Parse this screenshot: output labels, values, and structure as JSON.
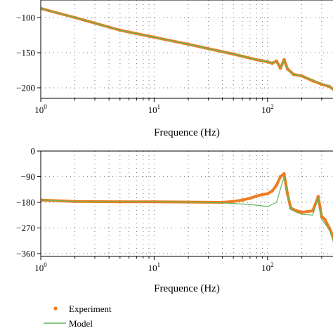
{
  "colors": {
    "experiment": "#ef7d22",
    "model": "#5cb85c",
    "grid": "#7a7a7a"
  },
  "legend": {
    "experiment": "Experiment",
    "model": "Model"
  },
  "chart_data": [
    {
      "type": "line",
      "panel": "magnitude",
      "xlabel": "Frequence (Hz)",
      "xscale": "log",
      "xlim": [
        1,
        400
      ],
      "ylim": [
        -215,
        -75
      ],
      "yticks": [
        -100,
        -150,
        -200
      ],
      "ytick_labels": [
        "−100",
        "−150",
        "−200"
      ],
      "xticks": [
        1,
        10,
        100
      ],
      "grid": true,
      "series": [
        {
          "name": "Experiment",
          "style": "points",
          "x": [
            1,
            2,
            5,
            10,
            20,
            50,
            80,
            100,
            110,
            120,
            130,
            140,
            150,
            170,
            200,
            250,
            300,
            350,
            400
          ],
          "y": [
            -87,
            -100,
            -118,
            -128,
            -138,
            -152,
            -160,
            -163,
            -165,
            -162,
            -172,
            -160,
            -173,
            -181,
            -183,
            -190,
            -195,
            -198,
            -205
          ]
        },
        {
          "name": "Model",
          "style": "line",
          "x": [
            1,
            2,
            5,
            10,
            20,
            50,
            80,
            100,
            120,
            130,
            140,
            150,
            170,
            200,
            250,
            300,
            350,
            400
          ],
          "y": [
            -87,
            -100,
            -118,
            -128,
            -138,
            -152,
            -160,
            -163,
            -164,
            -170,
            -162,
            -174,
            -181,
            -183,
            -189,
            -194,
            -198,
            -204
          ]
        }
      ]
    },
    {
      "type": "line",
      "panel": "phase",
      "xlabel": "Frequence (Hz)",
      "xscale": "log",
      "xlim": [
        1,
        400
      ],
      "ylim": [
        -370,
        0
      ],
      "yticks": [
        0,
        -90,
        -180,
        -270,
        -360
      ],
      "ytick_labels": [
        "0",
        "−90",
        "−180",
        "−270",
        "−360"
      ],
      "xticks": [
        1,
        10,
        100
      ],
      "grid": true,
      "series": [
        {
          "name": "Experiment",
          "style": "points",
          "x": [
            1,
            2,
            5,
            10,
            20,
            40,
            50,
            60,
            70,
            80,
            90,
            100,
            110,
            120,
            130,
            140,
            150,
            160,
            180,
            200,
            250,
            280,
            300,
            320,
            350,
            380,
            400
          ],
          "y": [
            -172,
            -177,
            -178,
            -178,
            -179,
            -180,
            -177,
            -172,
            -166,
            -158,
            -153,
            -150,
            -140,
            -120,
            -90,
            -80,
            -150,
            -200,
            -210,
            -215,
            -210,
            -160,
            -230,
            -240,
            -270,
            -300,
            -350
          ]
        },
        {
          "name": "Model",
          "style": "line",
          "x": [
            1,
            2,
            5,
            10,
            20,
            40,
            60,
            80,
            100,
            120,
            140,
            150,
            160,
            180,
            200,
            250,
            280,
            300,
            350,
            400
          ],
          "y": [
            -172,
            -177,
            -178,
            -178,
            -179,
            -182,
            -186,
            -190,
            -195,
            -180,
            -90,
            -150,
            -205,
            -215,
            -222,
            -225,
            -165,
            -240,
            -275,
            -345
          ]
        }
      ]
    }
  ]
}
